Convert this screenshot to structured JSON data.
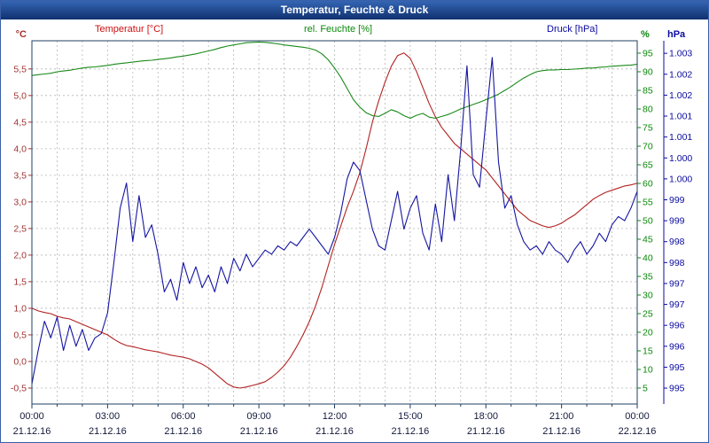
{
  "window": {
    "title": "Temperatur, Feuchte & Druck"
  },
  "legend": {
    "items": [
      {
        "id": "temperature",
        "label": "Temperatur [°C]",
        "color": "#cc1111"
      },
      {
        "id": "humidity",
        "label": "rel. Feuchte [%]",
        "color": "#0b880b"
      },
      {
        "id": "pressure",
        "label": "Druck [hPa]",
        "color": "#0b0bA0"
      }
    ]
  },
  "chart_data": {
    "type": "line",
    "title": "Temperatur, Feuchte & Druck",
    "x_unit": "hours (21.12.16 00:00 – 22.12.16 00:00)",
    "x": [
      0,
      0.25,
      0.5,
      0.75,
      1,
      1.25,
      1.5,
      1.75,
      2,
      2.25,
      2.5,
      2.75,
      3,
      3.25,
      3.5,
      3.75,
      4,
      4.25,
      4.5,
      4.75,
      5,
      5.25,
      5.5,
      5.75,
      6,
      6.25,
      6.5,
      6.75,
      7,
      7.25,
      7.5,
      7.75,
      8,
      8.25,
      8.5,
      8.75,
      9,
      9.25,
      9.5,
      9.75,
      10,
      10.25,
      10.5,
      10.75,
      11,
      11.25,
      11.5,
      11.75,
      12,
      12.25,
      12.5,
      12.75,
      13,
      13.25,
      13.5,
      13.75,
      14,
      14.25,
      14.5,
      14.75,
      15,
      15.25,
      15.5,
      15.75,
      16,
      16.25,
      16.5,
      16.75,
      17,
      17.25,
      17.5,
      17.75,
      18,
      18.25,
      18.5,
      18.75,
      19,
      19.25,
      19.5,
      19.75,
      20,
      20.25,
      20.5,
      20.75,
      21,
      21.25,
      21.5,
      21.75,
      22,
      22.25,
      22.5,
      22.75,
      23,
      23.25,
      23.5,
      23.75,
      24
    ],
    "series": [
      {
        "name": "Temperatur [°C]",
        "axis": "temperature",
        "color": "#b22222",
        "values": [
          1.0,
          0.95,
          0.92,
          0.9,
          0.85,
          0.82,
          0.8,
          0.75,
          0.7,
          0.65,
          0.6,
          0.55,
          0.5,
          0.42,
          0.35,
          0.3,
          0.28,
          0.25,
          0.22,
          0.2,
          0.18,
          0.15,
          0.12,
          0.1,
          0.08,
          0.05,
          0.0,
          -0.05,
          -0.12,
          -0.22,
          -0.32,
          -0.42,
          -0.48,
          -0.5,
          -0.48,
          -0.45,
          -0.42,
          -0.38,
          -0.3,
          -0.2,
          -0.08,
          0.08,
          0.28,
          0.5,
          0.75,
          1.05,
          1.4,
          1.8,
          2.2,
          2.55,
          2.9,
          3.2,
          3.55,
          4.0,
          4.5,
          4.9,
          5.25,
          5.55,
          5.75,
          5.8,
          5.7,
          5.45,
          5.15,
          4.85,
          4.6,
          4.4,
          4.25,
          4.1,
          4.0,
          3.9,
          3.8,
          3.7,
          3.6,
          3.45,
          3.3,
          3.15,
          3.0,
          2.85,
          2.75,
          2.65,
          2.6,
          2.55,
          2.52,
          2.55,
          2.6,
          2.68,
          2.75,
          2.85,
          2.95,
          3.05,
          3.12,
          3.18,
          3.22,
          3.26,
          3.3,
          3.32,
          3.35
        ]
      },
      {
        "name": "rel. Feuchte [%]",
        "axis": "humidity",
        "color": "#1a8a1a",
        "values": [
          89.0,
          89.2,
          89.4,
          89.6,
          90.0,
          90.2,
          90.4,
          90.7,
          91.0,
          91.2,
          91.3,
          91.5,
          91.7,
          92.0,
          92.2,
          92.4,
          92.6,
          92.8,
          93.0,
          93.1,
          93.3,
          93.5,
          93.7,
          94.0,
          94.2,
          94.5,
          94.8,
          95.2,
          95.6,
          96.0,
          96.5,
          96.9,
          97.2,
          97.5,
          97.8,
          97.9,
          98.0,
          97.9,
          97.7,
          97.5,
          97.2,
          97.0,
          96.8,
          96.6,
          96.3,
          95.8,
          94.8,
          93.2,
          91.0,
          88.5,
          85.5,
          82.5,
          80.5,
          79.0,
          78.2,
          78.0,
          78.8,
          79.8,
          79.2,
          78.2,
          77.5,
          78.3,
          78.8,
          77.8,
          77.5,
          78.0,
          78.5,
          79.2,
          80.0,
          80.6,
          81.2,
          81.8,
          82.5,
          83.2,
          84.0,
          85.0,
          86.0,
          87.2,
          88.3,
          89.2,
          90.0,
          90.3,
          90.5,
          90.5,
          90.6,
          90.6,
          90.7,
          90.8,
          91.0,
          91.0,
          91.2,
          91.3,
          91.5,
          91.6,
          91.7,
          91.8,
          92.0
        ]
      },
      {
        "name": "Druck [hPa]",
        "axis": "pressure",
        "color": "#1515a3",
        "values": [
          995.1,
          995.9,
          996.6,
          996.2,
          996.7,
          995.9,
          996.5,
          996.0,
          996.4,
          995.9,
          996.2,
          996.3,
          996.8,
          998.0,
          999.3,
          999.9,
          998.5,
          999.6,
          998.6,
          998.9,
          998.2,
          997.3,
          997.6,
          997.1,
          998.0,
          997.5,
          997.9,
          997.4,
          997.7,
          997.3,
          997.9,
          997.5,
          998.1,
          997.8,
          998.2,
          997.9,
          998.1,
          998.3,
          998.2,
          998.4,
          998.3,
          998.5,
          998.4,
          998.6,
          998.8,
          998.6,
          998.4,
          998.2,
          998.6,
          999.2,
          1000.0,
          1000.4,
          1000.2,
          999.5,
          998.8,
          998.4,
          998.3,
          999.0,
          999.7,
          998.8,
          999.3,
          999.6,
          998.7,
          998.3,
          999.4,
          998.5,
          1000.1,
          999.0,
          1000.7,
          1002.7,
          1000.1,
          999.8,
          1001.4,
          1002.9,
          1000.4,
          999.3,
          999.6,
          998.9,
          998.5,
          998.3,
          998.4,
          998.2,
          998.5,
          998.3,
          998.2,
          998.0,
          998.3,
          998.5,
          998.2,
          998.4,
          998.7,
          998.5,
          998.9,
          999.1,
          999.0,
          999.3,
          999.7
        ]
      }
    ],
    "axes": {
      "temperature": {
        "unit": "°C",
        "side": "left",
        "color": "#a03333",
        "range": [
          -0.8,
          6.03
        ],
        "tick_values": [
          5.5,
          5.0,
          4.5,
          4.0,
          3.5,
          3.0,
          2.5,
          2.0,
          1.5,
          1.0,
          0.5,
          0.0,
          -0.5
        ],
        "tick_labels": [
          "5,5",
          "5,0",
          "4,5",
          "4,0",
          "3,5",
          "3,0",
          "2,5",
          "2,0",
          "1,5",
          "1,0",
          "0,5",
          "0,0",
          "-0,5"
        ]
      },
      "humidity": {
        "unit": "%",
        "side": "right",
        "color": "#0b880b",
        "range": [
          0.71,
          98.33
        ],
        "tick_values": [
          95,
          90,
          85,
          80,
          75,
          70,
          65,
          60,
          55,
          50,
          45,
          40,
          35,
          30,
          25,
          20,
          15,
          10,
          5
        ],
        "tick_labels": [
          "95",
          "90",
          "85",
          "80",
          "75",
          "70",
          "65",
          "60",
          "55",
          "50",
          "45",
          "40",
          "35",
          "30",
          "25",
          "20",
          "15",
          "10",
          "5"
        ]
      },
      "pressure": {
        "unit": "hPa",
        "side": "far-right",
        "color": "#0b0bA0",
        "range": [
          994.62,
          1003.3
        ],
        "tick_values": [
          1003,
          1002.5,
          1002,
          1001.5,
          1001,
          1000.5,
          1000,
          999.5,
          999,
          998.5,
          998,
          997.5,
          997,
          996.5,
          996,
          995.5,
          995
        ],
        "tick_labels": [
          "1.003",
          "1.002",
          "1.002",
          "1.001",
          "1.001",
          "1.000",
          "1.000",
          "999",
          "999",
          "998",
          "998",
          "997",
          "997",
          "996",
          "996",
          "995",
          "995"
        ]
      }
    },
    "x_axis": {
      "tick_hours": [
        0,
        3,
        6,
        9,
        12,
        15,
        18,
        21,
        24
      ],
      "time_labels": [
        "00:00",
        "03:00",
        "06:00",
        "09:00",
        "12:00",
        "15:00",
        "18:00",
        "21:00",
        "00:00"
      ],
      "date_labels": [
        "21.12.16",
        "21.12.16",
        "21.12.16",
        "21.12.16",
        "21.12.16",
        "21.12.16",
        "21.12.16",
        "21.12.16",
        "22.12.16"
      ]
    },
    "style": {
      "grid_on": true,
      "grid_color": "#b5b5b5",
      "border_color": "#1f3f63",
      "axis_color": "#1f3f63",
      "time_label_color": "#121a3c",
      "date_label_color": "#121a3c",
      "background": "#ffffff"
    }
  }
}
